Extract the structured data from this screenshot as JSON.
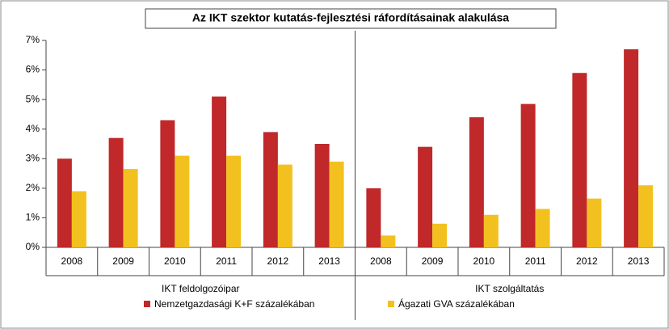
{
  "chart_data": {
    "type": "bar",
    "title": "Az IKT szektor kutatás-fejlesztési ráfordításainak alakulása",
    "categories": [
      "2008",
      "2009",
      "2010",
      "2011",
      "2012",
      "2013",
      "2008",
      "2009",
      "2010",
      "2011",
      "2012",
      "2013"
    ],
    "groups": [
      "IKT feldolgozóipar",
      "IKT szolgáltatás"
    ],
    "series": [
      {
        "name": "Nemzetgazdasági K+F százalékában",
        "color": "#c0282a",
        "values": [
          3.0,
          3.7,
          4.3,
          5.1,
          3.9,
          3.5,
          2.0,
          3.4,
          4.4,
          4.85,
          5.9,
          6.7
        ]
      },
      {
        "name": "Ágazati GVA százalékában",
        "color": "#f3c11f",
        "values": [
          1.9,
          2.65,
          3.1,
          3.1,
          2.8,
          2.9,
          0.4,
          0.8,
          1.1,
          1.3,
          1.65,
          2.1
        ]
      }
    ],
    "ylim": [
      0,
      7
    ],
    "yticks": [
      {
        "value": 0,
        "label": "0%"
      },
      {
        "value": 1,
        "label": "1%"
      },
      {
        "value": 2,
        "label": "2%"
      },
      {
        "value": 3,
        "label": "3%"
      },
      {
        "value": 4,
        "label": "4%"
      },
      {
        "value": 5,
        "label": "5%"
      },
      {
        "value": 6,
        "label": "6%"
      },
      {
        "value": 7,
        "label": "7%"
      }
    ],
    "grid": false
  }
}
